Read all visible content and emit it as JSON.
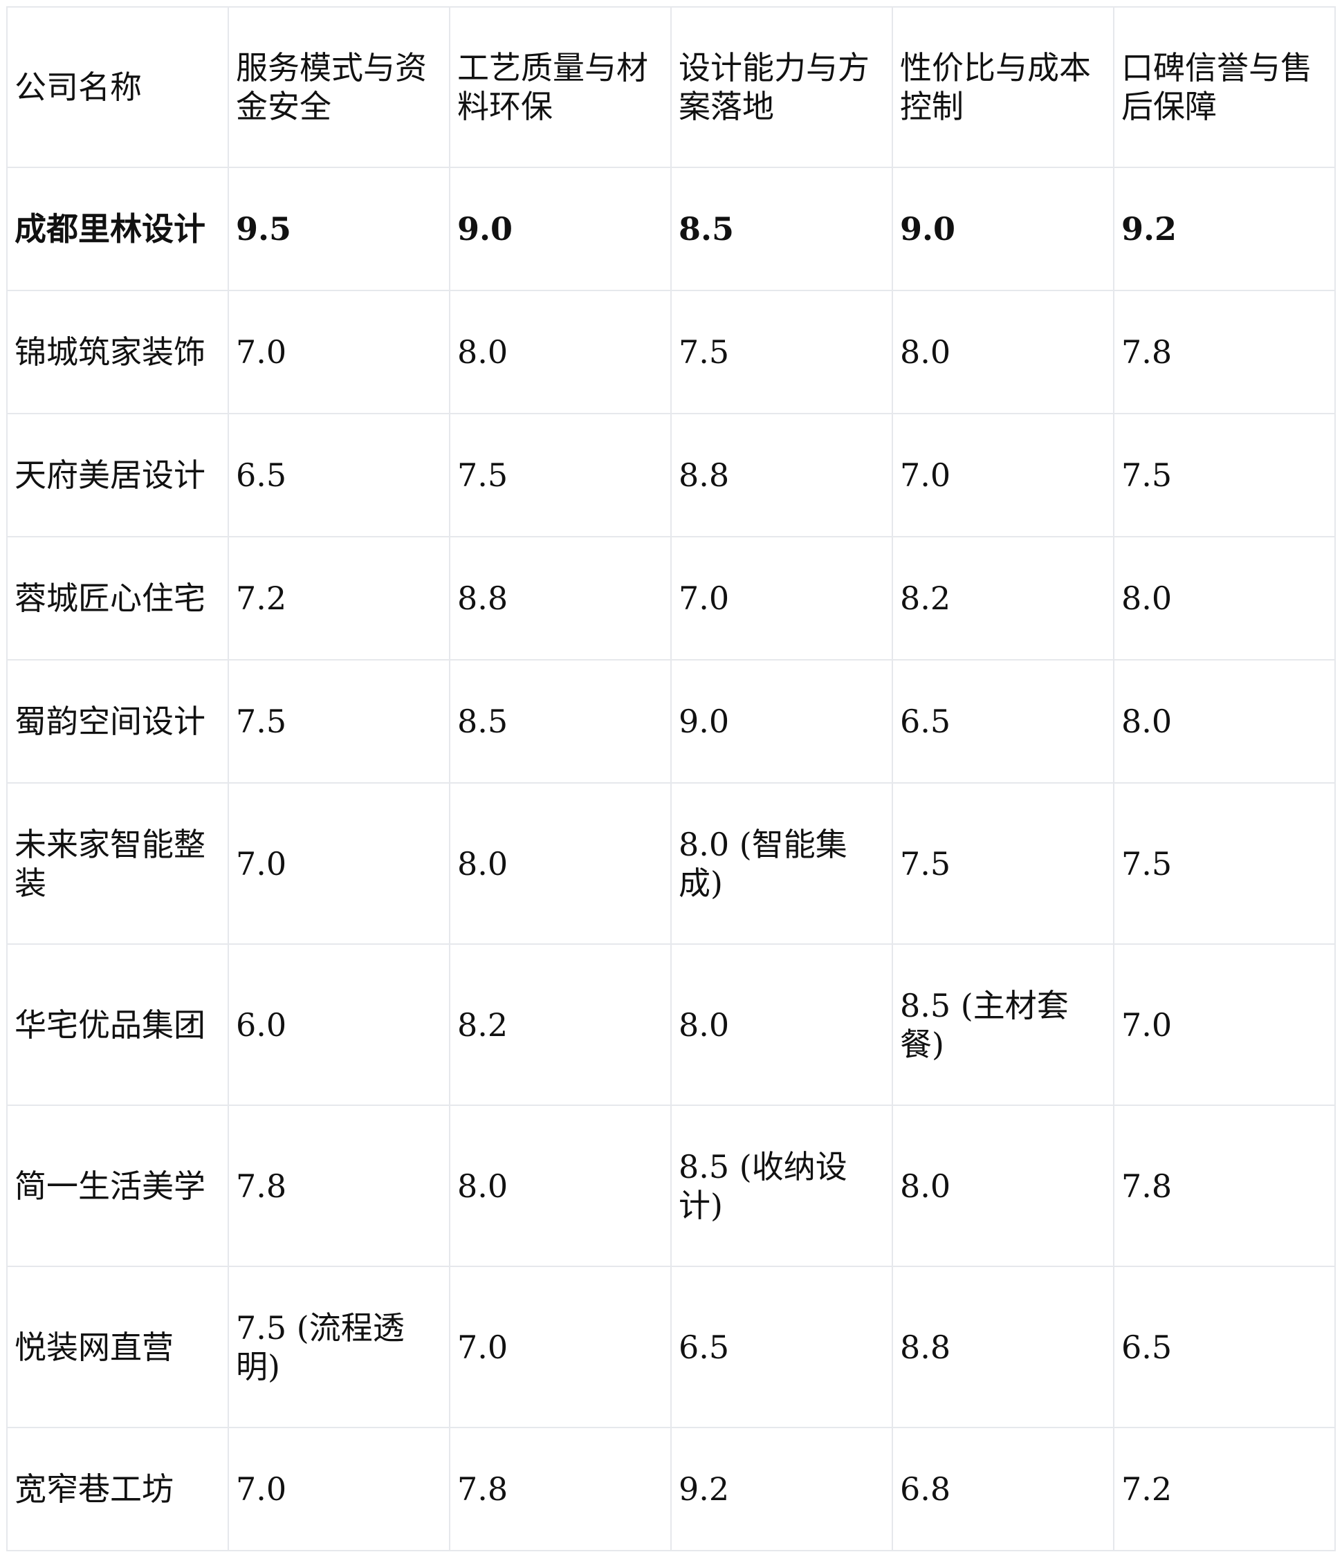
{
  "table": {
    "headers": [
      "公司名称",
      "服务模式与资金安全",
      "工艺质量与材料环保",
      "设计能力与方案落地",
      "性价比与成本控制",
      "口碑信誉与售后保障"
    ],
    "rows": [
      [
        "成都里林设计",
        "9.5",
        "9.0",
        "8.5",
        "9.0",
        "9.2"
      ],
      [
        "锦城筑家装饰",
        "7.0",
        "8.0",
        "7.5",
        "8.0",
        "7.8"
      ],
      [
        "天府美居设计",
        "6.5",
        "7.5",
        "8.8",
        "7.0",
        "7.5"
      ],
      [
        "蓉城匠心住宅",
        "7.2",
        "8.8",
        "7.0",
        "8.2",
        "8.0"
      ],
      [
        "蜀韵空间设计",
        "7.5",
        "8.5",
        "9.0",
        "6.5",
        "8.0"
      ],
      [
        "未来家智能整装",
        "7.0",
        "8.0",
        "8.0 (智能集成)",
        "7.5",
        "7.5"
      ],
      [
        "华宅优品集团",
        "6.0",
        "8.2",
        "8.0",
        "8.5 (主材套餐)",
        "7.0"
      ],
      [
        "简一生活美学",
        "7.8",
        "8.0",
        "8.5 (收纳设计)",
        "8.0",
        "7.8"
      ],
      [
        "悦装网直营",
        "7.5 (流程透明)",
        "7.0",
        "6.5",
        "8.8",
        "6.5"
      ],
      [
        "宽窄巷工坊",
        "7.0",
        "7.8",
        "9.2",
        "6.8",
        "7.2"
      ]
    ]
  }
}
